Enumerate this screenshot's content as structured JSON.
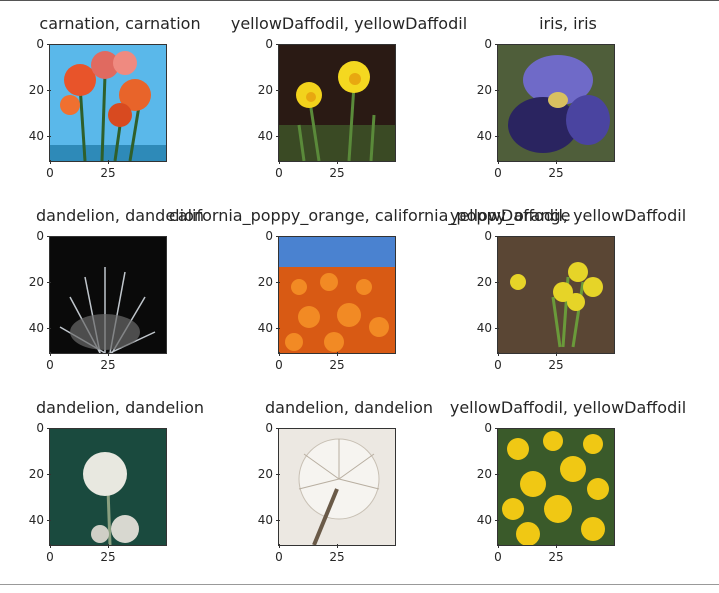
{
  "panels": [
    {
      "title": "carnation, carnation",
      "yticks": [
        "0",
        "20",
        "40"
      ],
      "xticks": [
        "0",
        "25"
      ]
    },
    {
      "title": "yellowDaffodil, yellowDaffodil",
      "yticks": [
        "0",
        "20",
        "40"
      ],
      "xticks": [
        "0",
        "25"
      ]
    },
    {
      "title": "iris, iris",
      "yticks": [
        "0",
        "20",
        "40"
      ],
      "xticks": [
        "0",
        "25"
      ]
    },
    {
      "title": "dandelion, dandelion",
      "yticks": [
        "0",
        "20",
        "40"
      ],
      "xticks": [
        "0",
        "25"
      ]
    },
    {
      "title": "california_poppy_orange, california_poppy_orange",
      "yticks": [
        "0",
        "20",
        "40"
      ],
      "xticks": [
        "0",
        "25"
      ]
    },
    {
      "title": "yellowDaffodil, yellowDaffodil",
      "yticks": [
        "0",
        "20",
        "40"
      ],
      "xticks": [
        "0",
        "25"
      ]
    },
    {
      "title": "dandelion, dandelion",
      "yticks": [
        "0",
        "20",
        "40"
      ],
      "xticks": [
        "0",
        "25"
      ]
    },
    {
      "title": "dandelion, dandelion",
      "yticks": [
        "0",
        "20",
        "40"
      ],
      "xticks": [
        "0",
        "25"
      ]
    },
    {
      "title": "yellowDaffodil, yellowDaffodil",
      "yticks": [
        "0",
        "20",
        "40"
      ],
      "xticks": [
        "0",
        "25"
      ]
    }
  ]
}
